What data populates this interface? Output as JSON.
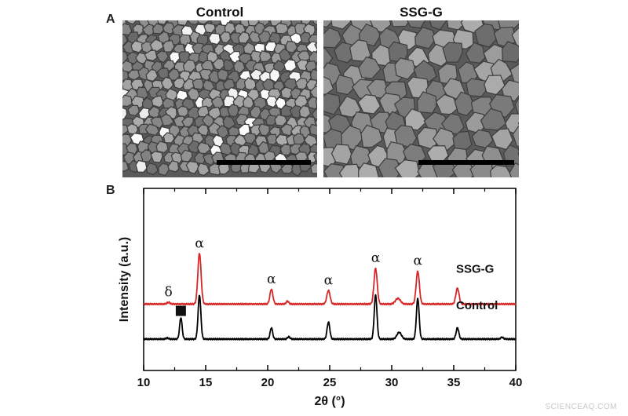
{
  "panel_a": {
    "letter": "A",
    "images": [
      {
        "title": "Control",
        "grain": "fine",
        "bright_highlights": true
      },
      {
        "title": "SSG-G",
        "grain": "coarse",
        "bright_highlights": false
      }
    ]
  },
  "panel_b": {
    "letter": "B"
  },
  "watermark": "SCIENCEAQ.COM",
  "chart_data": {
    "type": "line",
    "xlabel": "2θ (°)",
    "ylabel": "Intensity (a.u.)",
    "xlim": [
      10,
      40
    ],
    "xticks": [
      10,
      15,
      20,
      25,
      30,
      35,
      40
    ],
    "yticks_shown": false,
    "grid": false,
    "colors": {
      "SSG-G": "#d62728",
      "Control": "#000000"
    },
    "series": [
      {
        "name": "SSG-G",
        "baseline": 0.62,
        "peaks": [
          {
            "x": 12.0,
            "h": 0.03,
            "w": 0.12
          },
          {
            "x": 14.5,
            "h": 0.9,
            "w": 0.13
          },
          {
            "x": 20.3,
            "h": 0.26,
            "w": 0.12
          },
          {
            "x": 21.6,
            "h": 0.05,
            "w": 0.1
          },
          {
            "x": 24.9,
            "h": 0.24,
            "w": 0.13
          },
          {
            "x": 28.7,
            "h": 0.63,
            "w": 0.13
          },
          {
            "x": 30.5,
            "h": 0.1,
            "w": 0.2
          },
          {
            "x": 32.1,
            "h": 0.58,
            "w": 0.13
          },
          {
            "x": 35.3,
            "h": 0.28,
            "w": 0.13
          }
        ]
      },
      {
        "name": "Control",
        "baseline": 0.0,
        "peaks": [
          {
            "x": 11.9,
            "h": 0.02,
            "w": 0.1
          },
          {
            "x": 13.0,
            "h": 0.38,
            "w": 0.1
          },
          {
            "x": 14.5,
            "h": 0.78,
            "w": 0.11
          },
          {
            "x": 20.3,
            "h": 0.2,
            "w": 0.1
          },
          {
            "x": 21.7,
            "h": 0.04,
            "w": 0.1
          },
          {
            "x": 24.9,
            "h": 0.3,
            "w": 0.11
          },
          {
            "x": 28.7,
            "h": 0.78,
            "w": 0.11
          },
          {
            "x": 30.6,
            "h": 0.12,
            "w": 0.18
          },
          {
            "x": 32.1,
            "h": 0.72,
            "w": 0.11
          },
          {
            "x": 35.3,
            "h": 0.2,
            "w": 0.11
          },
          {
            "x": 38.9,
            "h": 0.03,
            "w": 0.12
          }
        ]
      }
    ],
    "annotations": [
      {
        "text": "δ",
        "x": 12.0,
        "series": "SSG-G"
      },
      {
        "text": "α",
        "x": 14.5,
        "series": "SSG-G"
      },
      {
        "text": "α",
        "x": 20.3,
        "series": "SSG-G"
      },
      {
        "text": "α",
        "x": 24.9,
        "series": "SSG-G"
      },
      {
        "text": "α",
        "x": 28.7,
        "series": "SSG-G"
      },
      {
        "text": "α",
        "x": 32.1,
        "series": "SSG-G"
      },
      {
        "text": "■",
        "x": 13.0,
        "series": "Control"
      }
    ]
  }
}
